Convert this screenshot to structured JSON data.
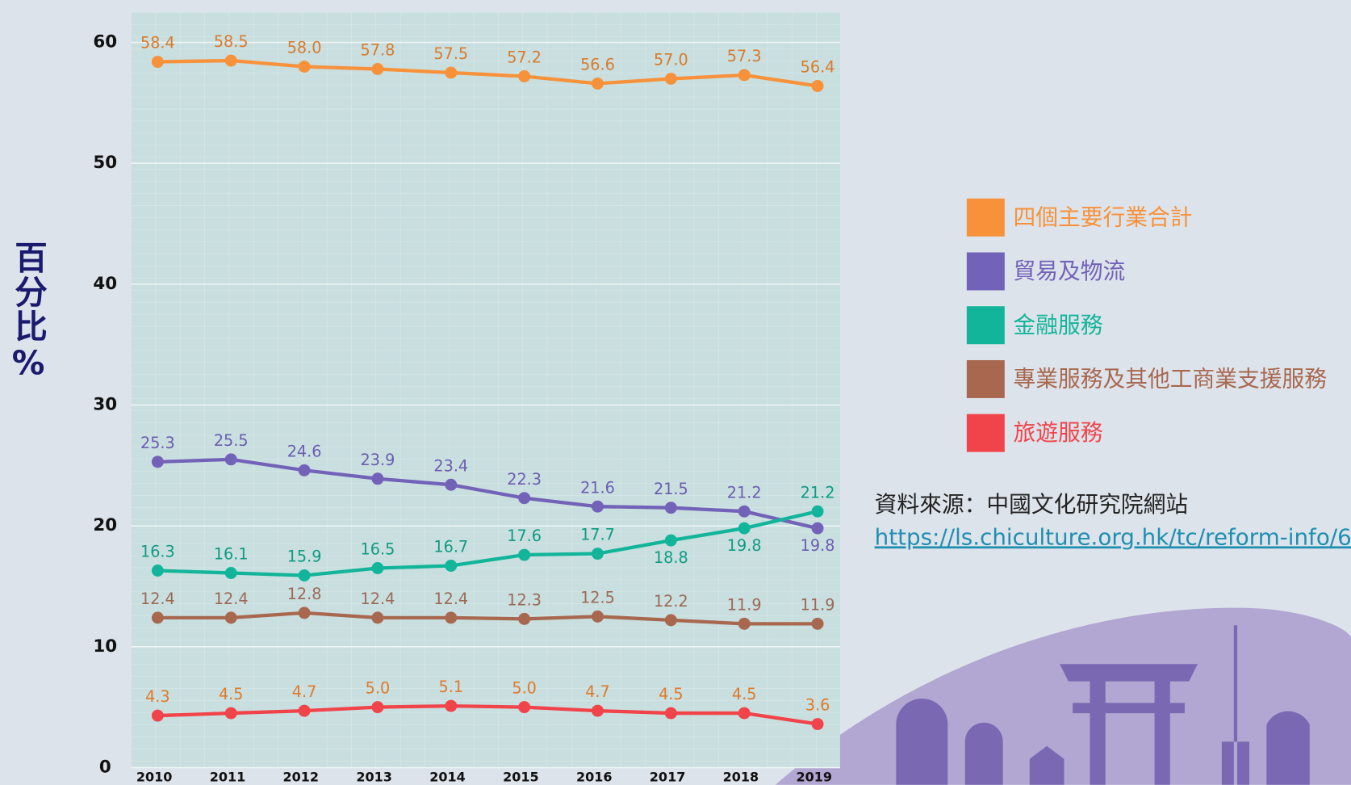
{
  "chart_data": {
    "type": "line",
    "y_label": "百分比%",
    "categories": [
      "2010",
      "2011",
      "2012",
      "2013",
      "2014",
      "2015",
      "2016",
      "2017",
      "2018",
      "2019"
    ],
    "series": [
      {
        "name": "四個主要行業合計",
        "color": "#f7923a",
        "label_color": "#d97a2b",
        "values": [
          58.4,
          58.5,
          58.0,
          57.8,
          57.5,
          57.2,
          56.6,
          57.0,
          57.3,
          56.4
        ],
        "value_labels": [
          "58.4",
          "58.5",
          "58.0",
          "57.8",
          "57.5",
          "57.2",
          "56.6",
          "57.0",
          "57.3",
          "56.4"
        ]
      },
      {
        "name": "貿易及物流",
        "color": "#7262b8",
        "label_color": "#6b5db0",
        "values": [
          25.3,
          25.5,
          24.6,
          23.9,
          23.4,
          22.3,
          21.6,
          21.5,
          21.2,
          19.8
        ],
        "value_labels": [
          "25.3",
          "25.5",
          "24.6",
          "23.9",
          "23.4",
          "22.3",
          "21.6",
          "21.5",
          "21.2",
          "19.8"
        ]
      },
      {
        "name": "金融服務",
        "color": "#12b59a",
        "label_color": "#0e9b82",
        "values": [
          16.3,
          16.1,
          15.9,
          16.5,
          16.7,
          17.6,
          17.7,
          18.8,
          19.8,
          21.2
        ],
        "value_labels": [
          "16.3",
          "16.1",
          "15.9",
          "16.5",
          "16.7",
          "17.6",
          "17.7",
          "18.8",
          "19.8",
          "21.2"
        ]
      },
      {
        "name": "專業服務及其他工商業支援服務",
        "color": "#a8684f",
        "label_color": "#9b6a55",
        "values": [
          12.4,
          12.4,
          12.8,
          12.4,
          12.4,
          12.3,
          12.5,
          12.2,
          11.9,
          11.9
        ],
        "value_labels": [
          "12.4",
          "12.4",
          "12.8",
          "12.4",
          "12.4",
          "12.3",
          "12.5",
          "12.2",
          "11.9",
          "11.9"
        ]
      },
      {
        "name": "旅遊服務",
        "color": "#f0444a",
        "label_color": "#e07a2a",
        "values": [
          4.3,
          4.5,
          4.7,
          5.0,
          5.1,
          5.0,
          4.7,
          4.5,
          4.5,
          3.6
        ],
        "value_labels": [
          "4.3",
          "4.5",
          "4.7",
          "5.0",
          "5.1",
          "5.0",
          "4.7",
          "4.5",
          "4.5",
          "3.6"
        ]
      }
    ],
    "ylim": [
      0,
      62.5
    ],
    "yticks": [
      0,
      10,
      20,
      30,
      40,
      50,
      60
    ],
    "grid": true,
    "source": "資料來源：中國文化研究院網站",
    "source_url": "https://ls.chiculture.org.hk/tc/reform-info/6"
  }
}
